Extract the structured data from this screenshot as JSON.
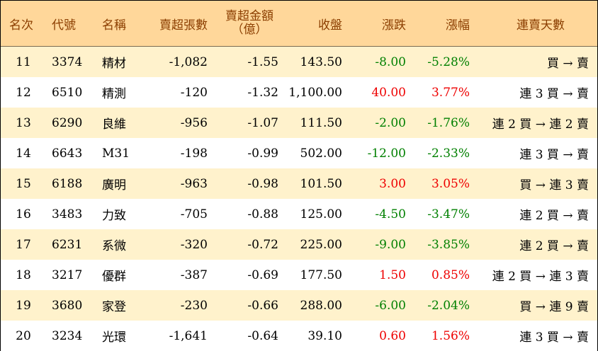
{
  "header": {
    "rank": "名次",
    "code": "代號",
    "name": "名稱",
    "net_sell_lots": "賣超張數",
    "net_sell_amount_line1": "賣超金額",
    "net_sell_amount_line2": "（億）",
    "close": "收盤",
    "change": "漲跌",
    "change_pct": "漲幅",
    "streak": "連賣天數"
  },
  "rows": [
    {
      "rank": "11",
      "code": "3374",
      "name": "精材",
      "lots": "-1,082",
      "amount": "-1.55",
      "close": "143.50",
      "change": "-8.00",
      "pct": "-5.28%",
      "streak": "買 → 賣",
      "dir": "down"
    },
    {
      "rank": "12",
      "code": "6510",
      "name": "精測",
      "lots": "-120",
      "amount": "-1.32",
      "close": "1,100.00",
      "change": "40.00",
      "pct": "3.77%",
      "streak": "連 3 買 → 賣",
      "dir": "up"
    },
    {
      "rank": "13",
      "code": "6290",
      "name": "良維",
      "lots": "-956",
      "amount": "-1.07",
      "close": "111.50",
      "change": "-2.00",
      "pct": "-1.76%",
      "streak": "連 2 買 → 連 2 賣",
      "dir": "down"
    },
    {
      "rank": "14",
      "code": "6643",
      "name": "M31",
      "lots": "-198",
      "amount": "-0.99",
      "close": "502.00",
      "change": "-12.00",
      "pct": "-2.33%",
      "streak": "連 3 買 → 賣",
      "dir": "down"
    },
    {
      "rank": "15",
      "code": "6188",
      "name": "廣明",
      "lots": "-963",
      "amount": "-0.98",
      "close": "101.50",
      "change": "3.00",
      "pct": "3.05%",
      "streak": "買 → 連 3 賣",
      "dir": "up"
    },
    {
      "rank": "16",
      "code": "3483",
      "name": "力致",
      "lots": "-705",
      "amount": "-0.88",
      "close": "125.00",
      "change": "-4.50",
      "pct": "-3.47%",
      "streak": "連 2 買 → 賣",
      "dir": "down"
    },
    {
      "rank": "17",
      "code": "6231",
      "name": "系微",
      "lots": "-320",
      "amount": "-0.72",
      "close": "225.00",
      "change": "-9.00",
      "pct": "-3.85%",
      "streak": "連 2 買 → 賣",
      "dir": "down"
    },
    {
      "rank": "18",
      "code": "3217",
      "name": "優群",
      "lots": "-387",
      "amount": "-0.69",
      "close": "177.50",
      "change": "1.50",
      "pct": "0.85%",
      "streak": "連 2 買 → 連 3 賣",
      "dir": "up"
    },
    {
      "rank": "19",
      "code": "3680",
      "name": "家登",
      "lots": "-230",
      "amount": "-0.66",
      "close": "288.00",
      "change": "-6.00",
      "pct": "-2.04%",
      "streak": "買 → 連 9 賣",
      "dir": "down"
    },
    {
      "rank": "20",
      "code": "3234",
      "name": "光環",
      "lots": "-1,641",
      "amount": "-0.64",
      "close": "39.10",
      "change": "0.60",
      "pct": "1.56%",
      "streak": "連 3 買 → 賣",
      "dir": "up"
    }
  ],
  "colors": {
    "up": "#ee0000",
    "down": "#008000",
    "header_bg": "#ffd79a",
    "header_text": "#8b3e00",
    "stripe": "#fff2cc"
  }
}
